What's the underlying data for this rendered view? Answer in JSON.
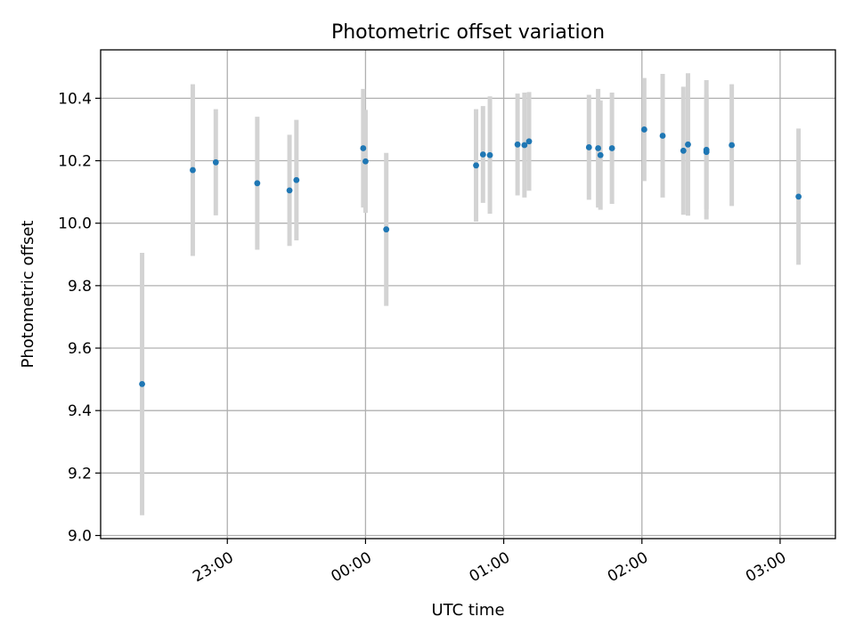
{
  "chart_data": {
    "type": "scatter",
    "title": "Photometric offset variation",
    "xlabel": "UTC time",
    "ylabel": "Photometric offset",
    "x_axis_type": "time",
    "xlim": [
      "22:05",
      "03:24"
    ],
    "ylim": [
      8.99,
      10.555
    ],
    "grid": true,
    "marker_color": "#1f77b4",
    "errorbar_color": "#d3d3d3",
    "x_tick_labels": [
      "23:00",
      "00:00",
      "01:00",
      "02:00",
      "03:00"
    ],
    "x_ticks": [
      "23:00",
      "00:00",
      "01:00",
      "02:00",
      "03:00"
    ],
    "y_tick_labels": [
      "9.0",
      "9.2",
      "9.4",
      "9.6",
      "9.8",
      "10.0",
      "10.2",
      "10.4"
    ],
    "y_ticks": [
      9.0,
      9.2,
      9.4,
      9.6,
      9.8,
      10.0,
      10.2,
      10.4
    ],
    "points": [
      {
        "x": "22:23",
        "y": 9.485,
        "yerr": 0.42
      },
      {
        "x": "22:45",
        "y": 10.17,
        "yerr": 0.275
      },
      {
        "x": "22:55",
        "y": 10.195,
        "yerr": 0.17
      },
      {
        "x": "23:13",
        "y": 10.128,
        "yerr": 0.213
      },
      {
        "x": "23:27",
        "y": 10.105,
        "yerr": 0.178
      },
      {
        "x": "23:30",
        "y": 10.138,
        "yerr": 0.193
      },
      {
        "x": "23:59",
        "y": 10.24,
        "yerr": 0.19
      },
      {
        "x": "00:00",
        "y": 10.198,
        "yerr": 0.165
      },
      {
        "x": "00:09",
        "y": 9.98,
        "yerr": 0.245
      },
      {
        "x": "00:48",
        "y": 10.185,
        "yerr": 0.18
      },
      {
        "x": "00:51",
        "y": 10.22,
        "yerr": 0.155
      },
      {
        "x": "00:54",
        "y": 10.218,
        "yerr": 0.188
      },
      {
        "x": "01:06",
        "y": 10.252,
        "yerr": 0.163
      },
      {
        "x": "01:09",
        "y": 10.25,
        "yerr": 0.168
      },
      {
        "x": "01:11",
        "y": 10.262,
        "yerr": 0.158
      },
      {
        "x": "01:37",
        "y": 10.243,
        "yerr": 0.168
      },
      {
        "x": "01:41",
        "y": 10.24,
        "yerr": 0.19
      },
      {
        "x": "01:42",
        "y": 10.218,
        "yerr": 0.175
      },
      {
        "x": "01:47",
        "y": 10.24,
        "yerr": 0.178
      },
      {
        "x": "02:01",
        "y": 10.3,
        "yerr": 0.165
      },
      {
        "x": "02:09",
        "y": 10.28,
        "yerr": 0.198
      },
      {
        "x": "02:18",
        "y": 10.232,
        "yerr": 0.205
      },
      {
        "x": "02:20",
        "y": 10.252,
        "yerr": 0.228
      },
      {
        "x": "02:28",
        "y": 10.235,
        "yerr": 0.223
      },
      {
        "x": "02:28",
        "y": 10.228,
        "yerr": 0.183
      },
      {
        "x": "02:39",
        "y": 10.25,
        "yerr": 0.195
      },
      {
        "x": "03:08",
        "y": 10.085,
        "yerr": 0.218
      }
    ]
  }
}
